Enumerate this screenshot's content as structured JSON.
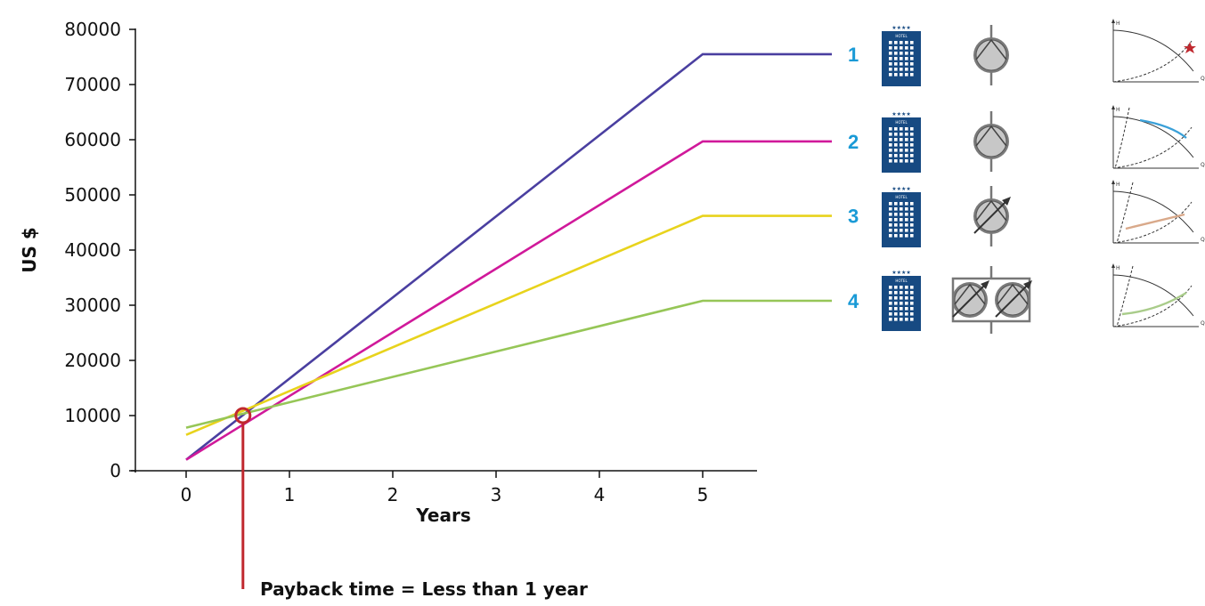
{
  "colors": {
    "series_1": "#4a3fa0",
    "series_2": "#d0199a",
    "series_3": "#e8d31c",
    "series_4": "#96c657",
    "marker": "#c0282e",
    "number_label": "#1a9ad6",
    "hotel": "#174a82",
    "pump_fill": "#c7c7c7",
    "curve_blue": "#3aa0d8",
    "curve_orange": "#d9a98a",
    "curve_green": "#a9cc8a"
  },
  "chart_data": {
    "type": "line",
    "xlabel": "Years",
    "ylabel": "US $",
    "xlim": [
      -0.5,
      5.5
    ],
    "ylim": [
      0,
      80000
    ],
    "x_ticks": [
      "0",
      "1",
      "2",
      "3",
      "4",
      "5"
    ],
    "y_ticks": [
      "0",
      "10000",
      "20000",
      "30000",
      "40000",
      "50000",
      "60000",
      "70000",
      "80000"
    ],
    "series": [
      {
        "id": "1",
        "label": "1",
        "color": "#4a3fa0",
        "points": [
          [
            0,
            2000
          ],
          [
            5,
            75500
          ],
          [
            6.25,
            75500
          ]
        ]
      },
      {
        "id": "2",
        "label": "2",
        "color": "#d0199a",
        "points": [
          [
            0,
            2000
          ],
          [
            5,
            59700
          ],
          [
            6.25,
            59700
          ]
        ]
      },
      {
        "id": "3",
        "label": "3",
        "color": "#e8d31c",
        "points": [
          [
            0,
            6500
          ],
          [
            5,
            46200
          ],
          [
            6.25,
            46200
          ]
        ]
      },
      {
        "id": "4",
        "label": "4",
        "color": "#96c657",
        "points": [
          [
            0,
            7800
          ],
          [
            5,
            30800
          ],
          [
            6.25,
            30800
          ]
        ]
      }
    ],
    "payback_point": {
      "x": 0.55,
      "y": 10000
    },
    "annotation": "Payback time = Less than 1 year"
  },
  "icons": {
    "hotel": "hotel-building-icon",
    "pump": "pump-icon",
    "variable_pump": "variable-speed-pump-icon",
    "twin_pump": "twin-variable-speed-pump-icon",
    "pump_curve": "pump-curve-icon"
  },
  "hotel_sign": "HOTEL",
  "hotel_stars": "★★★★",
  "mini_curve_axes": {
    "h": "H",
    "q": "Q"
  }
}
